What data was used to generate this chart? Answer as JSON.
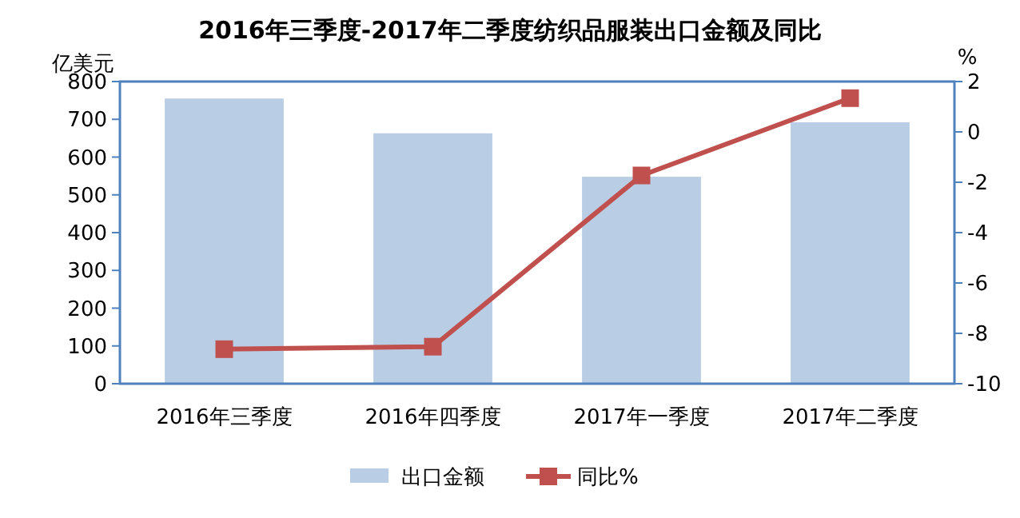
{
  "chart_data": {
    "type": "bar",
    "title": "2016年三季度-2017年二季度纺织品服装出口金额及同比",
    "ylabel": "亿美元",
    "y2label": "%",
    "categories": [
      "2016年三季度",
      "2016年四季度",
      "2017年一季度",
      "2017年二季度"
    ],
    "series": [
      {
        "name": "出口金额",
        "color": "#b9cde5",
        "values": [
          755,
          663,
          548,
          692
        ]
      },
      {
        "name": "同比%",
        "type": "line",
        "axis": "y2",
        "color": "#c0504d",
        "marker": "square",
        "values": [
          -8.63,
          -8.53,
          -1.73,
          1.34
        ]
      }
    ],
    "ylim": [
      0,
      800
    ],
    "yticks": [
      0,
      100,
      200,
      300,
      400,
      500,
      600,
      700,
      800
    ],
    "y2lim": [
      -10,
      2
    ],
    "y2ticks": [
      -10,
      -8,
      -6,
      -4,
      -2,
      0,
      2
    ],
    "grid": false,
    "legend": "bottom"
  }
}
